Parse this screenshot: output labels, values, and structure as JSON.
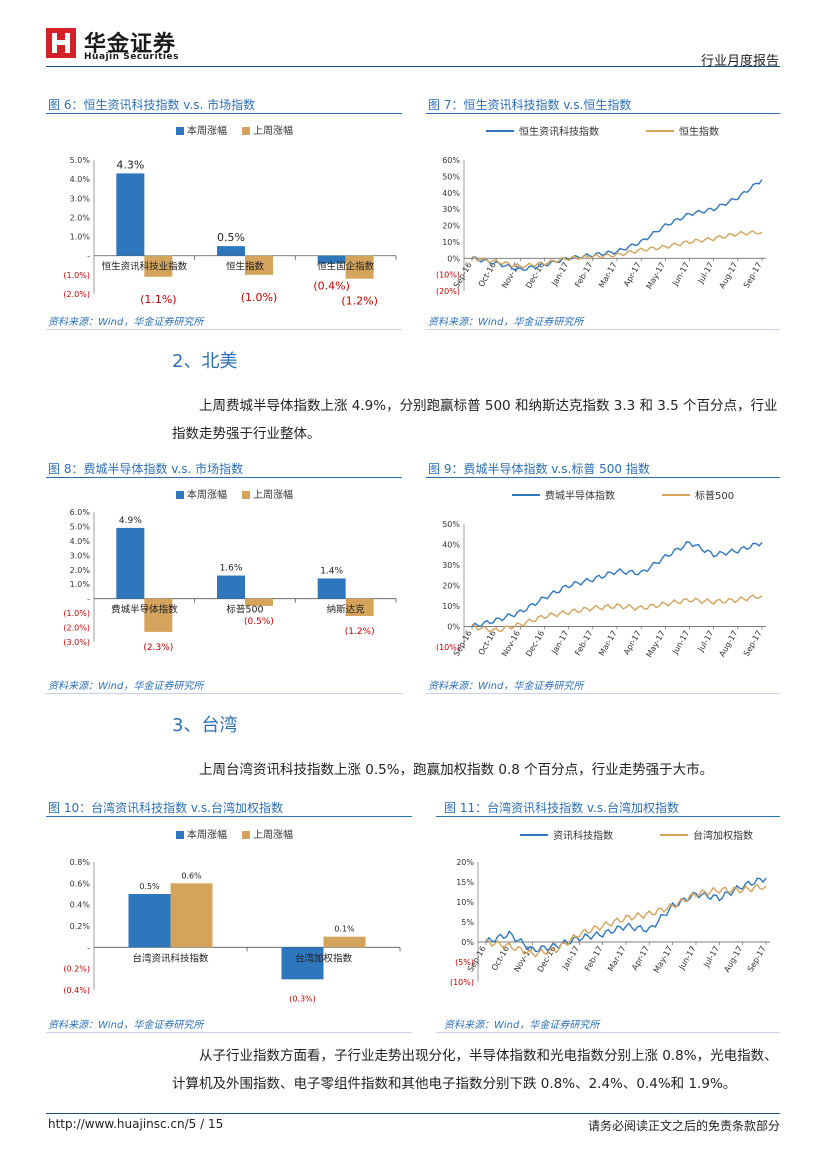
{
  "header": {
    "logo_cn": "华金证券",
    "logo_en": "Huajin Securities",
    "doc_type": "行业月度报告"
  },
  "colors": {
    "blue": "#2f77bd",
    "orange": "#d4a45c",
    "title_blue": "#2c6fb4",
    "neg_red": "#c00000"
  },
  "source_text": "资料来源：Wind，华金证券研究所",
  "fig6": {
    "title": "图 6：恒生资讯科技指数 v.s. 市场指数",
    "legend": [
      "本周涨幅",
      "上周涨幅"
    ],
    "chart_data": {
      "type": "bar",
      "categories": [
        "恒生资讯科技业指数",
        "恒生指数",
        "恒生国企指数"
      ],
      "series": [
        {
          "name": "本周涨幅",
          "values": [
            4.3,
            0.5,
            -0.4
          ]
        },
        {
          "name": "上周涨幅",
          "values": [
            -1.1,
            -1.0,
            -1.2
          ]
        }
      ],
      "yticks": [
        "5.0%",
        "4.0%",
        "3.0%",
        "2.0%",
        "1.0%",
        "-",
        "(1.0%)",
        "(2.0%)"
      ],
      "ylim": [
        -2.0,
        5.0
      ],
      "labels": {
        "this_week": [
          "4.3%",
          "0.5%",
          "(0.4%)"
        ],
        "last_week": [
          "(1.1%)",
          "(1.0%)",
          "(1.2%)"
        ]
      }
    }
  },
  "fig7": {
    "title": "图 7：恒生资讯科技指数 v.s.恒生指数",
    "legend": [
      "恒生资讯科技指数",
      "恒生指数"
    ],
    "chart_data": {
      "type": "line",
      "x": [
        "Sep-16",
        "Oct-16",
        "Nov-16",
        "Dec-16",
        "Jan-17",
        "Feb-17",
        "Mar-17",
        "Apr-17",
        "May-17",
        "Jun-17",
        "Jul-17",
        "Aug-17",
        "Sep-17"
      ],
      "series": [
        {
          "name": "恒生资讯科技指数",
          "values": [
            0,
            -3,
            -7,
            -4,
            0,
            2,
            4,
            10,
            20,
            27,
            30,
            37,
            48
          ]
        },
        {
          "name": "恒生指数",
          "values": [
            0,
            -2,
            -5,
            -3,
            0,
            1,
            2,
            5,
            7,
            10,
            12,
            15,
            16
          ]
        }
      ],
      "yticks": [
        "60%",
        "50%",
        "40%",
        "30%",
        "20%",
        "10%",
        "0%",
        "(10%)",
        "(20%)"
      ],
      "ylim": [
        -20,
        60
      ]
    }
  },
  "sec2": {
    "title": "2、北美",
    "para": "上周费城半导体指数上涨 4.9%，分别跑赢标普 500 和纳斯达克指数 3.3 和 3.5 个百分点，行业指数走势强于行业整体。"
  },
  "fig8": {
    "title": "图 8：费城半导体指数 v.s. 市场指数",
    "legend": [
      "本周涨幅",
      "上周涨幅"
    ],
    "chart_data": {
      "type": "bar",
      "categories": [
        "费城半导体指数",
        "标普500",
        "纳斯达克"
      ],
      "series": [
        {
          "name": "本周涨幅",
          "values": [
            4.9,
            1.6,
            1.4
          ]
        },
        {
          "name": "上周涨幅",
          "values": [
            -2.3,
            -0.5,
            -1.2
          ]
        }
      ],
      "yticks": [
        "6.0%",
        "5.0%",
        "4.0%",
        "3.0%",
        "2.0%",
        "1.0%",
        "-",
        "(1.0%)",
        "(2.0%)",
        "(3.0%)"
      ],
      "ylim": [
        -3.0,
        6.0
      ],
      "labels": {
        "this_week": [
          "4.9%",
          "1.6%",
          "1.4%"
        ],
        "last_week": [
          "(2.3%)",
          "(0.5%)",
          "(1.2%)"
        ]
      }
    }
  },
  "fig9": {
    "title": "图 9：费城半导体指数 v.s.标普 500 指数",
    "legend": [
      "费城半导体指数",
      "标普500"
    ],
    "chart_data": {
      "type": "line",
      "x": [
        "Sep-16",
        "Oct-16",
        "Nov-16",
        "Dec-16",
        "Jan-17",
        "Feb-17",
        "Mar-17",
        "Apr-17",
        "May-17",
        "Jun-17",
        "Jul-17",
        "Aug-17",
        "Sep-17"
      ],
      "series": [
        {
          "name": "费城半导体指数",
          "values": [
            0,
            3,
            7,
            14,
            20,
            23,
            27,
            26,
            34,
            41,
            35,
            37,
            41
          ]
        },
        {
          "name": "标普500",
          "values": [
            0,
            -2,
            1,
            5,
            7,
            9,
            10,
            9,
            11,
            13,
            12,
            13,
            15
          ]
        }
      ],
      "yticks": [
        "50%",
        "40%",
        "30%",
        "20%",
        "10%",
        "0%",
        "(10%)"
      ],
      "ylim": [
        -10,
        50
      ]
    }
  },
  "sec3": {
    "title": "3、台湾",
    "para": "上周台湾资讯科技指数上涨 0.5%，跑赢加权指数 0.8 个百分点，行业走势强于大市。"
  },
  "fig10": {
    "title": "图 10：台湾资讯科技指数 v.s.台湾加权指数",
    "legend": [
      "本周涨幅",
      "上周涨幅"
    ],
    "chart_data": {
      "type": "bar",
      "categories": [
        "台湾资讯科技指数",
        "台湾加权指数"
      ],
      "series": [
        {
          "name": "本周涨幅",
          "values": [
            0.5,
            -0.3
          ]
        },
        {
          "name": "上周涨幅",
          "values": [
            0.6,
            0.1
          ]
        }
      ],
      "yticks": [
        "0.8%",
        "0.6%",
        "0.4%",
        "0.2%",
        "-",
        "(0.2%)",
        "(0.4%)"
      ],
      "ylim": [
        -0.4,
        0.8
      ],
      "labels": {
        "this_week": [
          "0.5%",
          "(0.3%)"
        ],
        "last_week": [
          "0.6%",
          "0.1%"
        ]
      }
    }
  },
  "fig11": {
    "title": "图 11：台湾资讯科技指数 v.s.台湾加权指数",
    "legend": [
      "资讯科技指数",
      "台湾加权指数"
    ],
    "chart_data": {
      "type": "line",
      "x": [
        "Sep-16",
        "Oct-16",
        "Nov-16",
        "Dec-16",
        "Jan-17",
        "Feb-17",
        "Mar-17",
        "Apr-17",
        "May-17",
        "Jun-17",
        "Jul-17",
        "Aug-17",
        "Sep-17"
      ],
      "series": [
        {
          "name": "资讯科技指数",
          "values": [
            0,
            2,
            -2,
            -1,
            1,
            2,
            4,
            3,
            9,
            12,
            11,
            14,
            16
          ]
        },
        {
          "name": "台湾加权指数",
          "values": [
            0,
            -1,
            -3,
            -2,
            2,
            4,
            6,
            7,
            9,
            12,
            13,
            13,
            14
          ]
        }
      ],
      "yticks": [
        "20%",
        "15%",
        "10%",
        "5%",
        "0%",
        "(5%)",
        "(10%)"
      ],
      "ylim": [
        -10,
        20
      ]
    }
  },
  "para_final": "从子行业指数方面看，子行业走势出现分化，半导体指数和光电指数分别上涨 0.8%，光电指数、计算机及外围指数、电子零组件指数和其他电子指数分别下跌 0.8%、2.4%、0.4%和 1.9%。",
  "footer": {
    "url": "http://www.huajinsc.cn/",
    "page": "5 / 15",
    "disclaimer": "请务必阅读正文之后的免责条款部分"
  }
}
